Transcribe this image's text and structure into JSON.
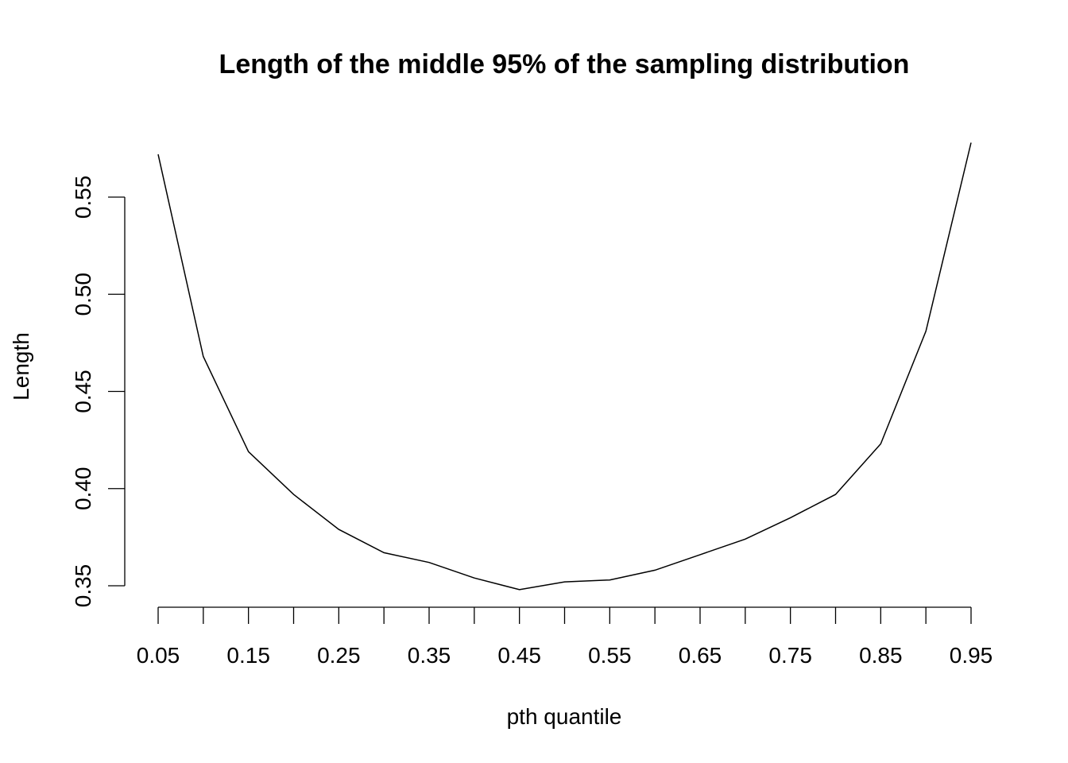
{
  "chart_data": {
    "type": "line",
    "title": "Length of the middle 95% of the sampling distribution",
    "xlabel": "pth quantile",
    "ylabel": "Length",
    "x": [
      0.05,
      0.1,
      0.15,
      0.2,
      0.25,
      0.3,
      0.35,
      0.4,
      0.45,
      0.5,
      0.55,
      0.6,
      0.65,
      0.7,
      0.75,
      0.8,
      0.85,
      0.9,
      0.95
    ],
    "series": [
      {
        "values": [
          0.572,
          0.468,
          0.419,
          0.397,
          0.379,
          0.367,
          0.362,
          0.354,
          0.348,
          0.352,
          0.353,
          0.358,
          0.366,
          0.374,
          0.385,
          0.397,
          0.423,
          0.481,
          0.578
        ],
        "color": "#000000"
      }
    ],
    "xlim": [
      0.05,
      0.95
    ],
    "ylim": [
      0.35,
      0.55
    ],
    "xticks": [
      "0.05",
      "0.15",
      "0.25",
      "0.35",
      "0.45",
      "0.55",
      "0.65",
      "0.75",
      "0.85",
      "0.95"
    ],
    "xtick_marks": [
      0.05,
      0.1,
      0.15,
      0.2,
      0.25,
      0.3,
      0.35,
      0.4,
      0.45,
      0.5,
      0.55,
      0.6,
      0.65,
      0.7,
      0.75,
      0.8,
      0.85,
      0.9,
      0.95
    ],
    "yticks": [
      "0.35",
      "0.40",
      "0.45",
      "0.50",
      "0.55"
    ],
    "grid": false,
    "legend": "none"
  }
}
